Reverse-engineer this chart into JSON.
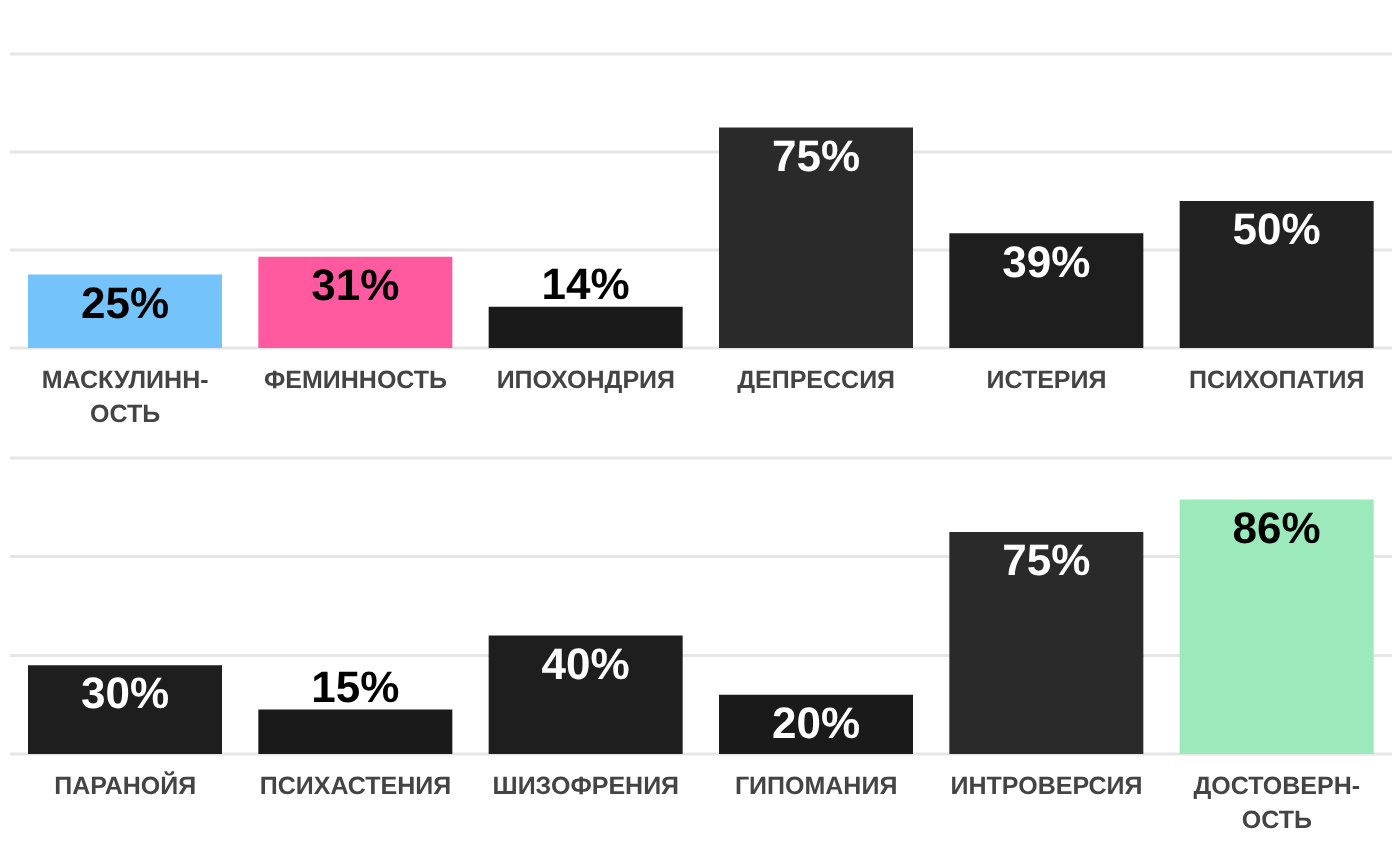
{
  "chart_data": [
    {
      "type": "bar",
      "categories": [
        "МАСКУЛИНН-ОСТЬ",
        "ФЕМИННОСТЬ",
        "ИПОХОНДРИЯ",
        "ДЕПРЕССИЯ",
        "ИСТЕРИЯ",
        "ПСИХОПАТИЯ"
      ],
      "values": [
        25,
        31,
        14,
        75,
        39,
        50
      ],
      "colors": [
        "#74c3fb",
        "#ff5aa0",
        "#1a1a1a",
        "#2a2a2a",
        "#1e1e1e",
        "#222222"
      ],
      "value_labels": [
        "25%",
        "31%",
        "14%",
        "75%",
        "39%",
        "50%"
      ],
      "ylim": [
        0,
        100
      ],
      "yticks": [
        {
          "value": 0,
          "label": null
        },
        {
          "value": 33.3,
          "label": null
        },
        {
          "value": 66.7,
          "label": null
        },
        {
          "value": 100,
          "label": null
        }
      ],
      "grid": "y",
      "tick_labels": "x"
    },
    {
      "type": "bar",
      "categories": [
        "ПАРАНОЙЯ",
        "ПСИХАСТЕНИЯ",
        "ШИЗОФРЕНИЯ",
        "ГИПОМАНИЯ",
        "ИНТРОВЕРСИЯ",
        "ДОСТОВЕРН-ОСТЬ"
      ],
      "values": [
        30,
        15,
        40,
        20,
        75,
        86
      ],
      "colors": [
        "#1e1e1e",
        "#1a1a1a",
        "#1e1e1e",
        "#1a1a1a",
        "#2a2a2a",
        "#9ceabb"
      ],
      "value_labels": [
        "30%",
        "15%",
        "40%",
        "20%",
        "75%",
        "86%"
      ],
      "ylim": [
        0,
        100
      ],
      "yticks": [
        {
          "value": 0,
          "label": null
        },
        {
          "value": 33.3,
          "label": null
        },
        {
          "value": 66.7,
          "label": null
        },
        {
          "value": 100,
          "label": null
        }
      ],
      "grid": "y",
      "tick_labels": "x"
    }
  ]
}
